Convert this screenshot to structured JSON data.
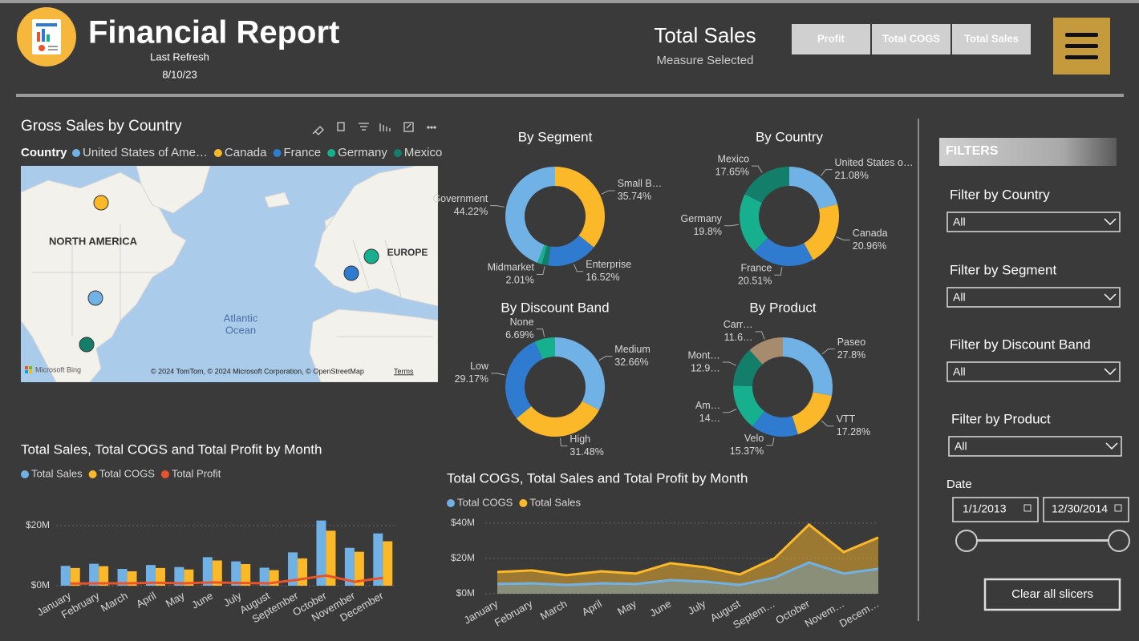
{
  "header": {
    "title": "Financial Report",
    "refresh_label": "Last Refresh",
    "refresh_date": "8/10/23",
    "measure": "Total Sales",
    "measure_caption": "Measure Selected",
    "buttons": [
      "Profit",
      "Total COGS",
      "Total Sales"
    ]
  },
  "map": {
    "title": "Gross Sales by Country",
    "legend_title": "Country",
    "legend": [
      {
        "name": "United States of Ame…",
        "color": "#71B2E6"
      },
      {
        "name": "Canada",
        "color": "#FBB829"
      },
      {
        "name": "France",
        "color": "#2E7BCF"
      },
      {
        "name": "Germany",
        "color": "#17B08E"
      },
      {
        "name": "Mexico",
        "color": "#137F6B"
      }
    ],
    "labels": [
      "NORTH AMERICA",
      "EUROPE",
      "Atlantic",
      "Ocean"
    ],
    "provider": "Microsoft Bing",
    "attribution": "© 2024 TomTom, © 2024 Microsoft Corporation, © OpenStreetMap",
    "terms": "Terms"
  },
  "chart_data": [
    {
      "type": "bar",
      "title": "Total Sales, Total COGS and Total Profit by Month",
      "categories": [
        "January",
        "February",
        "March",
        "April",
        "May",
        "June",
        "July",
        "August",
        "September",
        "October",
        "November",
        "December"
      ],
      "series": [
        {
          "name": "Total Sales",
          "color": "#71B2E6",
          "values": [
            6.6,
            7.3,
            5.6,
            6.9,
            6.2,
            9.5,
            8.1,
            6.0,
            11.1,
            21.7,
            12.6,
            17.4
          ]
        },
        {
          "name": "Total COGS",
          "color": "#FBB829",
          "values": [
            5.9,
            6.5,
            4.8,
            5.9,
            5.4,
            8.4,
            7.2,
            5.2,
            9.1,
            18.3,
            11.3,
            14.8
          ]
        },
        {
          "name": "Total Profit",
          "color": "#E9542A",
          "mark": "line",
          "values": [
            0.7,
            0.8,
            0.8,
            1.0,
            0.8,
            1.1,
            0.9,
            0.8,
            2.0,
            3.4,
            1.3,
            2.6
          ]
        }
      ],
      "ylim": [
        0,
        24
      ],
      "yticks": [
        {
          "value": 0,
          "label": "$0M"
        },
        {
          "value": 20,
          "label": "$20M"
        }
      ],
      "grid": true
    },
    {
      "type": "area",
      "title": "Total COGS, Total Sales and Total Profit by Month",
      "categories": [
        "January",
        "February",
        "March",
        "April",
        "May",
        "June",
        "July",
        "August",
        "Septem…",
        "October",
        "Novem…",
        "Decem…"
      ],
      "series": [
        {
          "name": "Total COGS",
          "color": "#71B2E6",
          "values": [
            5.5,
            5.9,
            5.0,
            5.9,
            5.5,
            7.7,
            6.8,
            5.0,
            9.1,
            17.7,
            11.4,
            14.1
          ]
        },
        {
          "name": "Total Sales",
          "color": "#FBB829",
          "values": [
            12.3,
            13.2,
            10.5,
            12.7,
            11.4,
            17.3,
            15.0,
            10.9,
            20.0,
            39.1,
            23.6,
            31.8
          ]
        }
      ],
      "ylim": [
        0,
        44
      ],
      "yticks": [
        {
          "value": 0,
          "label": "$0M"
        },
        {
          "value": 20,
          "label": "$20M"
        },
        {
          "value": 40,
          "label": "$40M"
        }
      ],
      "grid": true
    },
    {
      "type": "donut",
      "title": "By Segment",
      "categories": [
        "Small B…",
        "Enterprise",
        "Midmarket",
        null,
        "Government"
      ],
      "values": [
        35.74,
        16.52,
        2.01,
        1.51,
        44.22
      ],
      "value_labels": [
        "35.74%",
        "16.52%",
        "2.01%",
        null,
        "44.22%"
      ],
      "colors": [
        "#FBB829",
        "#2E7BCF",
        "#137F6B",
        "#17B08E",
        "#71B2E6"
      ]
    },
    {
      "type": "donut",
      "title": "By Country",
      "categories": [
        "United States o…",
        "Canada",
        "France",
        "Germany",
        "Mexico"
      ],
      "values": [
        21.08,
        20.96,
        20.51,
        19.8,
        17.65
      ],
      "value_labels": [
        "21.08%",
        "20.96%",
        "20.51%",
        "19.8%",
        "17.65%"
      ],
      "colors": [
        "#71B2E6",
        "#FBB829",
        "#2E7BCF",
        "#17B08E",
        "#137F6B"
      ]
    },
    {
      "type": "donut",
      "title": "By Discount Band",
      "categories": [
        "Medium",
        "High",
        "Low",
        "None"
      ],
      "values": [
        32.66,
        31.48,
        29.17,
        6.69
      ],
      "value_labels": [
        "32.66%",
        "31.48%",
        "29.17%",
        "6.69%"
      ],
      "colors": [
        "#71B2E6",
        "#FBB829",
        "#2E7BCF",
        "#17B08E"
      ]
    },
    {
      "type": "donut",
      "title": "By Product",
      "categories": [
        "Paseo",
        "VTT",
        "Velo",
        "Am…",
        "Mont…",
        "Carr…"
      ],
      "values": [
        27.8,
        17.28,
        15.37,
        14.97,
        12.94,
        11.64
      ],
      "value_labels": [
        "27.8%",
        "17.28%",
        "15.37%",
        "14…",
        "12.9…",
        "11.6…"
      ],
      "colors": [
        "#71B2E6",
        "#FBB829",
        "#2E7BCF",
        "#17B08E",
        "#137F6B",
        "#A68B6C"
      ]
    }
  ],
  "filters": {
    "title": "FILTERS",
    "slicers": [
      {
        "label": "Filter by Country",
        "value": "All"
      },
      {
        "label": "Filter by Segment",
        "value": "All"
      },
      {
        "label": "Filter by Discount Band",
        "value": "All"
      },
      {
        "label": "Filter by Product",
        "value": "All"
      }
    ],
    "date_label": "Date",
    "date_from": "1/1/2013",
    "date_to": "12/30/2014",
    "clear": "Clear all slicers"
  }
}
